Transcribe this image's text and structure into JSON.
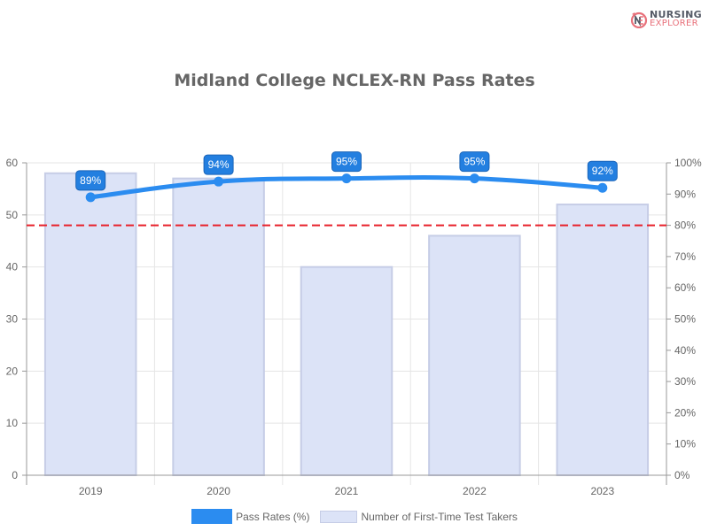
{
  "brand": {
    "line1": "NURSING",
    "line2": "EXPLORER"
  },
  "chart_data": {
    "type": "bar",
    "title": "Midland College NCLEX-RN Pass Rates",
    "categories": [
      "2019",
      "2020",
      "2021",
      "2022",
      "2023"
    ],
    "series": [
      {
        "name": "Number of First-Time Test Takers",
        "type": "bar",
        "axis": "left",
        "values": [
          58,
          57,
          40,
          46,
          52
        ],
        "color": "#dce3f7"
      },
      {
        "name": "Pass Rates (%)",
        "type": "line",
        "axis": "right",
        "values": [
          89,
          94,
          95,
          95,
          92
        ],
        "labels": [
          "89%",
          "94%",
          "95%",
          "95%",
          "92%"
        ],
        "color": "#2b8cf0"
      }
    ],
    "reference_line": {
      "value": 80,
      "axis": "right",
      "style": "dashed",
      "color": "#e8202a"
    },
    "y_left": {
      "ticks": [
        "0",
        "10",
        "20",
        "30",
        "40",
        "50",
        "60"
      ],
      "ylim": [
        0,
        60
      ]
    },
    "y_right": {
      "ticks": [
        "0%",
        "10%",
        "20%",
        "30%",
        "40%",
        "50%",
        "60%",
        "70%",
        "80%",
        "90%",
        "100%"
      ],
      "ylim": [
        0,
        100
      ]
    },
    "xlabel": "",
    "ylabel": "",
    "grid": true,
    "legend_position": "bottom"
  },
  "legend": {
    "items": [
      "Pass Rates (%)",
      "Number of First-Time Test Takers"
    ]
  }
}
